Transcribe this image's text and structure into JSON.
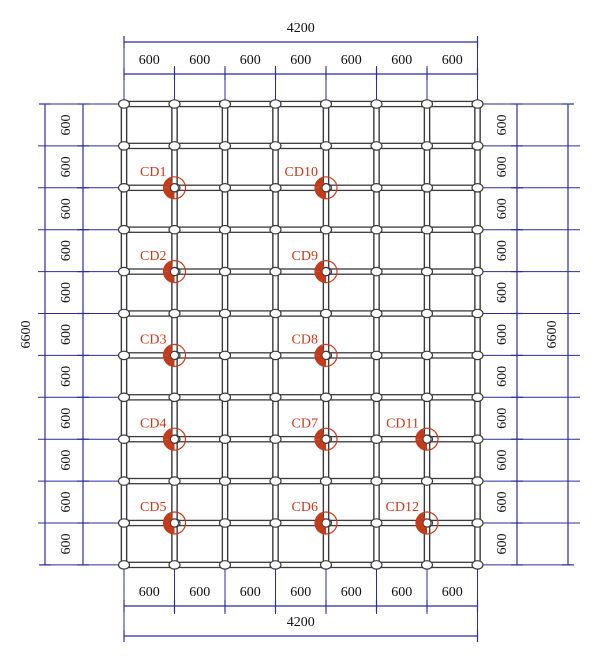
{
  "colors": {
    "dimension_line": "#2b2b9a",
    "grid_line": "#3a3a3a",
    "grid_fill": "#ffffff",
    "node": "#ffffff",
    "sensor": "#c23b1b",
    "label": "#c23b1b"
  },
  "grid": {
    "columns": 7,
    "rows": 11,
    "spacing_mm": 600
  },
  "dimensions": {
    "top_total": "4200",
    "bottom_total": "4200",
    "left_total": "6600",
    "right_total": "6600",
    "segment": "600"
  },
  "sensors": [
    {
      "label": "CD1",
      "col": 1,
      "row": 2
    },
    {
      "label": "CD2",
      "col": 1,
      "row": 4
    },
    {
      "label": "CD3",
      "col": 1,
      "row": 6
    },
    {
      "label": "CD4",
      "col": 1,
      "row": 8
    },
    {
      "label": "CD5",
      "col": 1,
      "row": 10
    },
    {
      "label": "CD10",
      "col": 4,
      "row": 2
    },
    {
      "label": "CD9",
      "col": 4,
      "row": 4
    },
    {
      "label": "CD8",
      "col": 4,
      "row": 6
    },
    {
      "label": "CD7",
      "col": 4,
      "row": 8
    },
    {
      "label": "CD6",
      "col": 4,
      "row": 10
    },
    {
      "label": "CD11",
      "col": 6,
      "row": 8
    },
    {
      "label": "CD12",
      "col": 6,
      "row": 10
    }
  ]
}
